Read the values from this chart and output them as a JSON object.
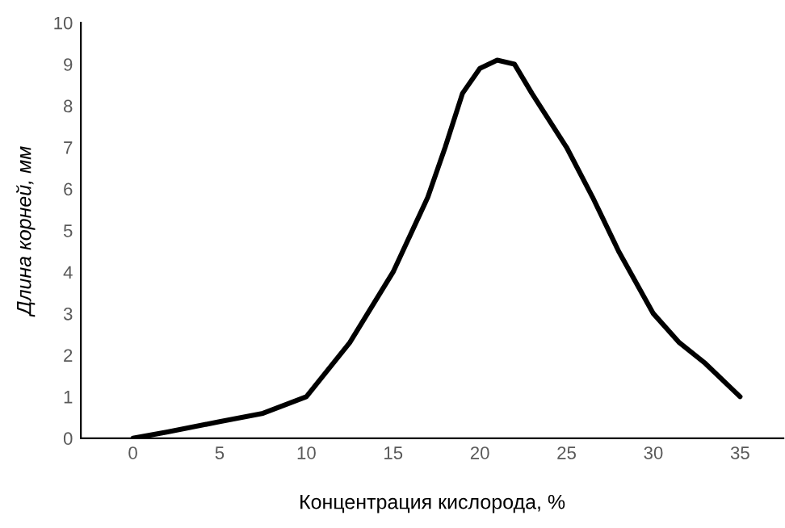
{
  "chart_data": {
    "type": "line",
    "xlabel": "Концентрация кислорода, %",
    "ylabel": "Длина корней, мм",
    "x": [
      0,
      2,
      5,
      7.5,
      10,
      12.5,
      15,
      17,
      18,
      19,
      20,
      21,
      22,
      23,
      25,
      26.5,
      28,
      30,
      31.5,
      33,
      35
    ],
    "series": [
      {
        "color": "#000000",
        "values": [
          0,
          0.15,
          0.4,
          0.6,
          1,
          2.3,
          4,
          5.8,
          7,
          8.3,
          8.9,
          9.1,
          9.0,
          8.3,
          7,
          5.8,
          4.5,
          3,
          2.3,
          1.8,
          1
        ]
      }
    ],
    "xlim": [
      -3,
      37.5
    ],
    "ylim": [
      0,
      10
    ],
    "xticks": [
      0,
      5,
      10,
      15,
      20,
      25,
      30,
      35
    ],
    "yticks": [
      0,
      1,
      2,
      3,
      4,
      5,
      6,
      7,
      8,
      9,
      10
    ],
    "grid": false,
    "legend": false,
    "marker": "none",
    "line_style": "solid"
  }
}
